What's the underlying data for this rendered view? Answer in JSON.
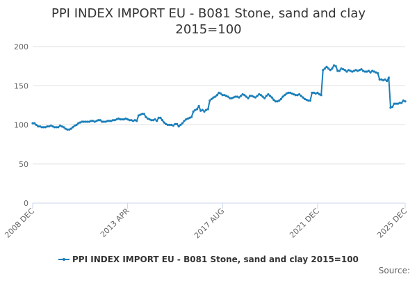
{
  "chart_data": {
    "type": "line",
    "title": "PPI INDEX IMPORT EU - B081 Stone, sand and clay 2015=100",
    "source": "Source:",
    "categories": [
      "2008 DEC",
      null,
      null,
      null,
      null,
      null,
      null,
      null,
      null,
      null,
      null,
      null,
      null,
      null,
      null,
      null,
      null,
      null,
      null,
      null,
      null,
      null,
      null,
      null,
      null,
      null,
      null,
      null,
      null,
      null,
      null,
      null,
      null,
      null,
      null,
      null,
      null,
      null,
      null,
      null,
      null,
      null,
      null,
      null,
      null,
      null,
      null,
      null,
      null,
      null,
      null,
      null,
      "2013 APR",
      null,
      null,
      null,
      null,
      null,
      null,
      null,
      null,
      null,
      null,
      null,
      null,
      null,
      null,
      null,
      null,
      null,
      null,
      null,
      null,
      null,
      null,
      null,
      null,
      null,
      null,
      null,
      null,
      null,
      null,
      null,
      null,
      null,
      null,
      null,
      null,
      null,
      null,
      null,
      null,
      null,
      null,
      null,
      null,
      null,
      null,
      null,
      null,
      null,
      null,
      null,
      "2017 AUG",
      null,
      null,
      null,
      null,
      null,
      null,
      null,
      null,
      null,
      null,
      null,
      null,
      null,
      null,
      null,
      null,
      null,
      null,
      null,
      null,
      null,
      null,
      null,
      null,
      null,
      null,
      null,
      null,
      null,
      null,
      null,
      null,
      null,
      null,
      null,
      null,
      null,
      null,
      null,
      null,
      null,
      null,
      null,
      null,
      null,
      null,
      null,
      null,
      null,
      null,
      null,
      "2021 DEC",
      null,
      null,
      null,
      null,
      null,
      null,
      null,
      null,
      null,
      null,
      null,
      null,
      null,
      null,
      null,
      null,
      null,
      null,
      null,
      null,
      null,
      null,
      null,
      null,
      null,
      null,
      null,
      null,
      null,
      null,
      null,
      null,
      null,
      null,
      null,
      null,
      null,
      null,
      null,
      null,
      null,
      null,
      null,
      null,
      null,
      null,
      null,
      "2025 DEC"
    ],
    "series": [
      {
        "name": "PPI INDEX IMPORT EU - B081 Stone, sand and clay 2015=100",
        "color": "#1a7fba",
        "values": [
          102,
          102,
          100,
          98,
          98,
          97,
          97,
          97,
          98,
          98,
          99,
          98,
          97,
          97,
          97,
          99,
          98,
          97,
          95,
          94,
          94,
          95,
          97,
          99,
          100,
          102,
          103,
          104,
          104,
          104,
          104,
          104,
          105,
          105,
          104,
          105,
          106,
          106,
          104,
          104,
          104,
          105,
          105,
          105,
          106,
          106,
          107,
          108,
          107,
          107,
          107,
          108,
          107,
          106,
          106,
          105,
          106,
          105,
          112,
          113,
          114,
          114,
          110,
          108,
          107,
          106,
          106,
          107,
          105,
          109,
          109,
          106,
          103,
          101,
          100,
          100,
          100,
          99,
          101,
          101,
          98,
          100,
          102,
          105,
          107,
          108,
          109,
          110,
          117,
          119,
          120,
          124,
          118,
          119,
          117,
          119,
          120,
          131,
          133,
          135,
          136,
          138,
          141,
          140,
          138,
          138,
          137,
          136,
          134,
          134,
          135,
          136,
          136,
          135,
          137,
          139,
          138,
          136,
          134,
          137,
          137,
          136,
          135,
          137,
          139,
          138,
          136,
          134,
          137,
          139,
          137,
          135,
          132,
          130,
          130,
          131,
          133,
          136,
          138,
          140,
          141,
          141,
          140,
          139,
          138,
          138,
          139,
          137,
          135,
          133,
          132,
          131,
          131,
          141,
          141,
          140,
          141,
          139,
          138,
          170,
          172,
          174,
          172,
          170,
          172,
          176,
          175,
          169,
          169,
          172,
          171,
          170,
          168,
          170,
          169,
          168,
          169,
          170,
          169,
          170,
          171,
          169,
          168,
          168,
          169,
          167,
          169,
          168,
          167,
          166,
          158,
          158,
          157,
          158,
          156,
          160,
          122,
          123,
          127,
          127,
          127,
          128,
          128,
          131,
          130
        ]
      }
    ],
    "ylim": [
      0,
      200
    ],
    "yticks": [
      0,
      50,
      100,
      150,
      200
    ],
    "grid": true
  }
}
